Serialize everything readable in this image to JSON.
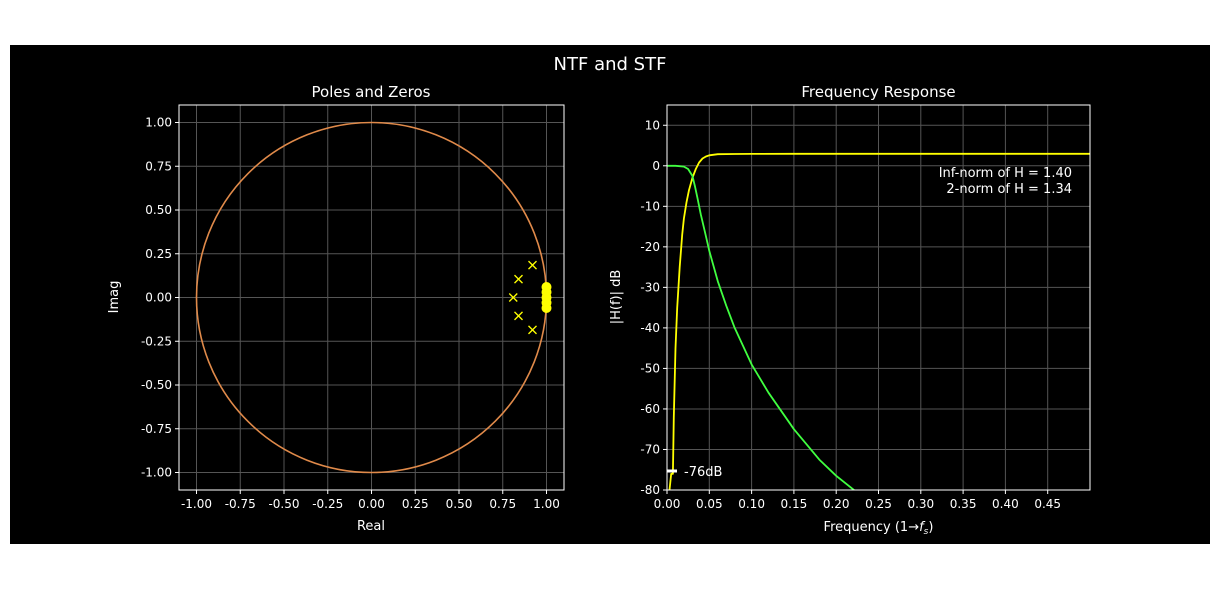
{
  "figure": {
    "suptitle": "NTF and STF",
    "background": "#000000",
    "text_color": "#ffffff",
    "grid_color": "#555555"
  },
  "chart_data": [
    {
      "type": "scatter",
      "title": "Poles and Zeros",
      "xlabel": "Real",
      "ylabel": "Imag",
      "xlim": [
        -1.1,
        1.1
      ],
      "ylim": [
        -1.1,
        1.1
      ],
      "xticks": [
        "-1.00",
        "-0.75",
        "-0.50",
        "-0.25",
        "0.00",
        "0.25",
        "0.50",
        "0.75",
        "1.00"
      ],
      "yticks": [
        "1.00",
        "0.75",
        "0.50",
        "0.25",
        "0.00",
        "-0.25",
        "-0.50",
        "-0.75",
        "-1.00"
      ],
      "grid": true,
      "unit_circle": {
        "color": "#e08a4a"
      },
      "poles": {
        "marker": "x",
        "color": "#ffff00",
        "points": [
          [
            0.92,
            0.185
          ],
          [
            0.84,
            0.105
          ],
          [
            0.81,
            0.0
          ],
          [
            0.84,
            -0.105
          ],
          [
            0.92,
            -0.185
          ]
        ]
      },
      "zeros": {
        "marker": "o",
        "color": "#ffff00",
        "points": [
          [
            1.0,
            0.06
          ],
          [
            1.0,
            0.03
          ],
          [
            1.0,
            0.0
          ],
          [
            1.0,
            -0.03
          ],
          [
            1.0,
            -0.06
          ]
        ]
      }
    },
    {
      "type": "line",
      "title": "Frequency Response",
      "xlabel": "Frequency (1→fs)",
      "ylabel": "|H(f)| dB",
      "xlim": [
        0,
        0.5
      ],
      "ylim": [
        -80,
        15
      ],
      "xticks": [
        "0.00",
        "0.05",
        "0.10",
        "0.15",
        "0.20",
        "0.25",
        "0.30",
        "0.35",
        "0.40",
        "0.45"
      ],
      "yticks": [
        "10",
        "0",
        "-10",
        "-20",
        "-30",
        "-40",
        "-50",
        "-60",
        "-70",
        "-80"
      ],
      "grid": true,
      "series": [
        {
          "color": "#ffff00",
          "x": [
            0.003,
            0.005,
            0.007,
            0.008,
            0.01,
            0.012,
            0.015,
            0.018,
            0.02,
            0.023,
            0.026,
            0.03,
            0.034,
            0.038,
            0.042,
            0.046,
            0.05,
            0.06,
            0.08,
            0.1,
            0.15,
            0.2,
            0.3,
            0.4,
            0.5
          ],
          "y": [
            -80,
            -76,
            -76,
            -62,
            -45,
            -35,
            -25,
            -17,
            -13,
            -9,
            -6,
            -3,
            -0.8,
            0.8,
            1.8,
            2.3,
            2.6,
            2.85,
            2.92,
            2.94,
            2.95,
            2.95,
            2.95,
            2.95,
            2.95
          ]
        },
        {
          "color": "#40ff40",
          "x": [
            0.0,
            0.01,
            0.02,
            0.025,
            0.03,
            0.033,
            0.036,
            0.04,
            0.045,
            0.05,
            0.06,
            0.07,
            0.08,
            0.1,
            0.12,
            0.15,
            0.18,
            0.2,
            0.23
          ],
          "y": [
            0.0,
            0.0,
            -0.2,
            -0.8,
            -2.5,
            -5,
            -8,
            -12,
            -16.5,
            -21,
            -28.5,
            -34.5,
            -40,
            -49,
            -56,
            -65,
            -72.5,
            -76.5,
            -81.5
          ]
        }
      ],
      "annotations": {
        "inf_norm": "Inf-norm of H = 1.40",
        "two_norm": "2-norm of H = 1.34",
        "marker_label": "-76dB",
        "marker_value": -76
      }
    }
  ]
}
